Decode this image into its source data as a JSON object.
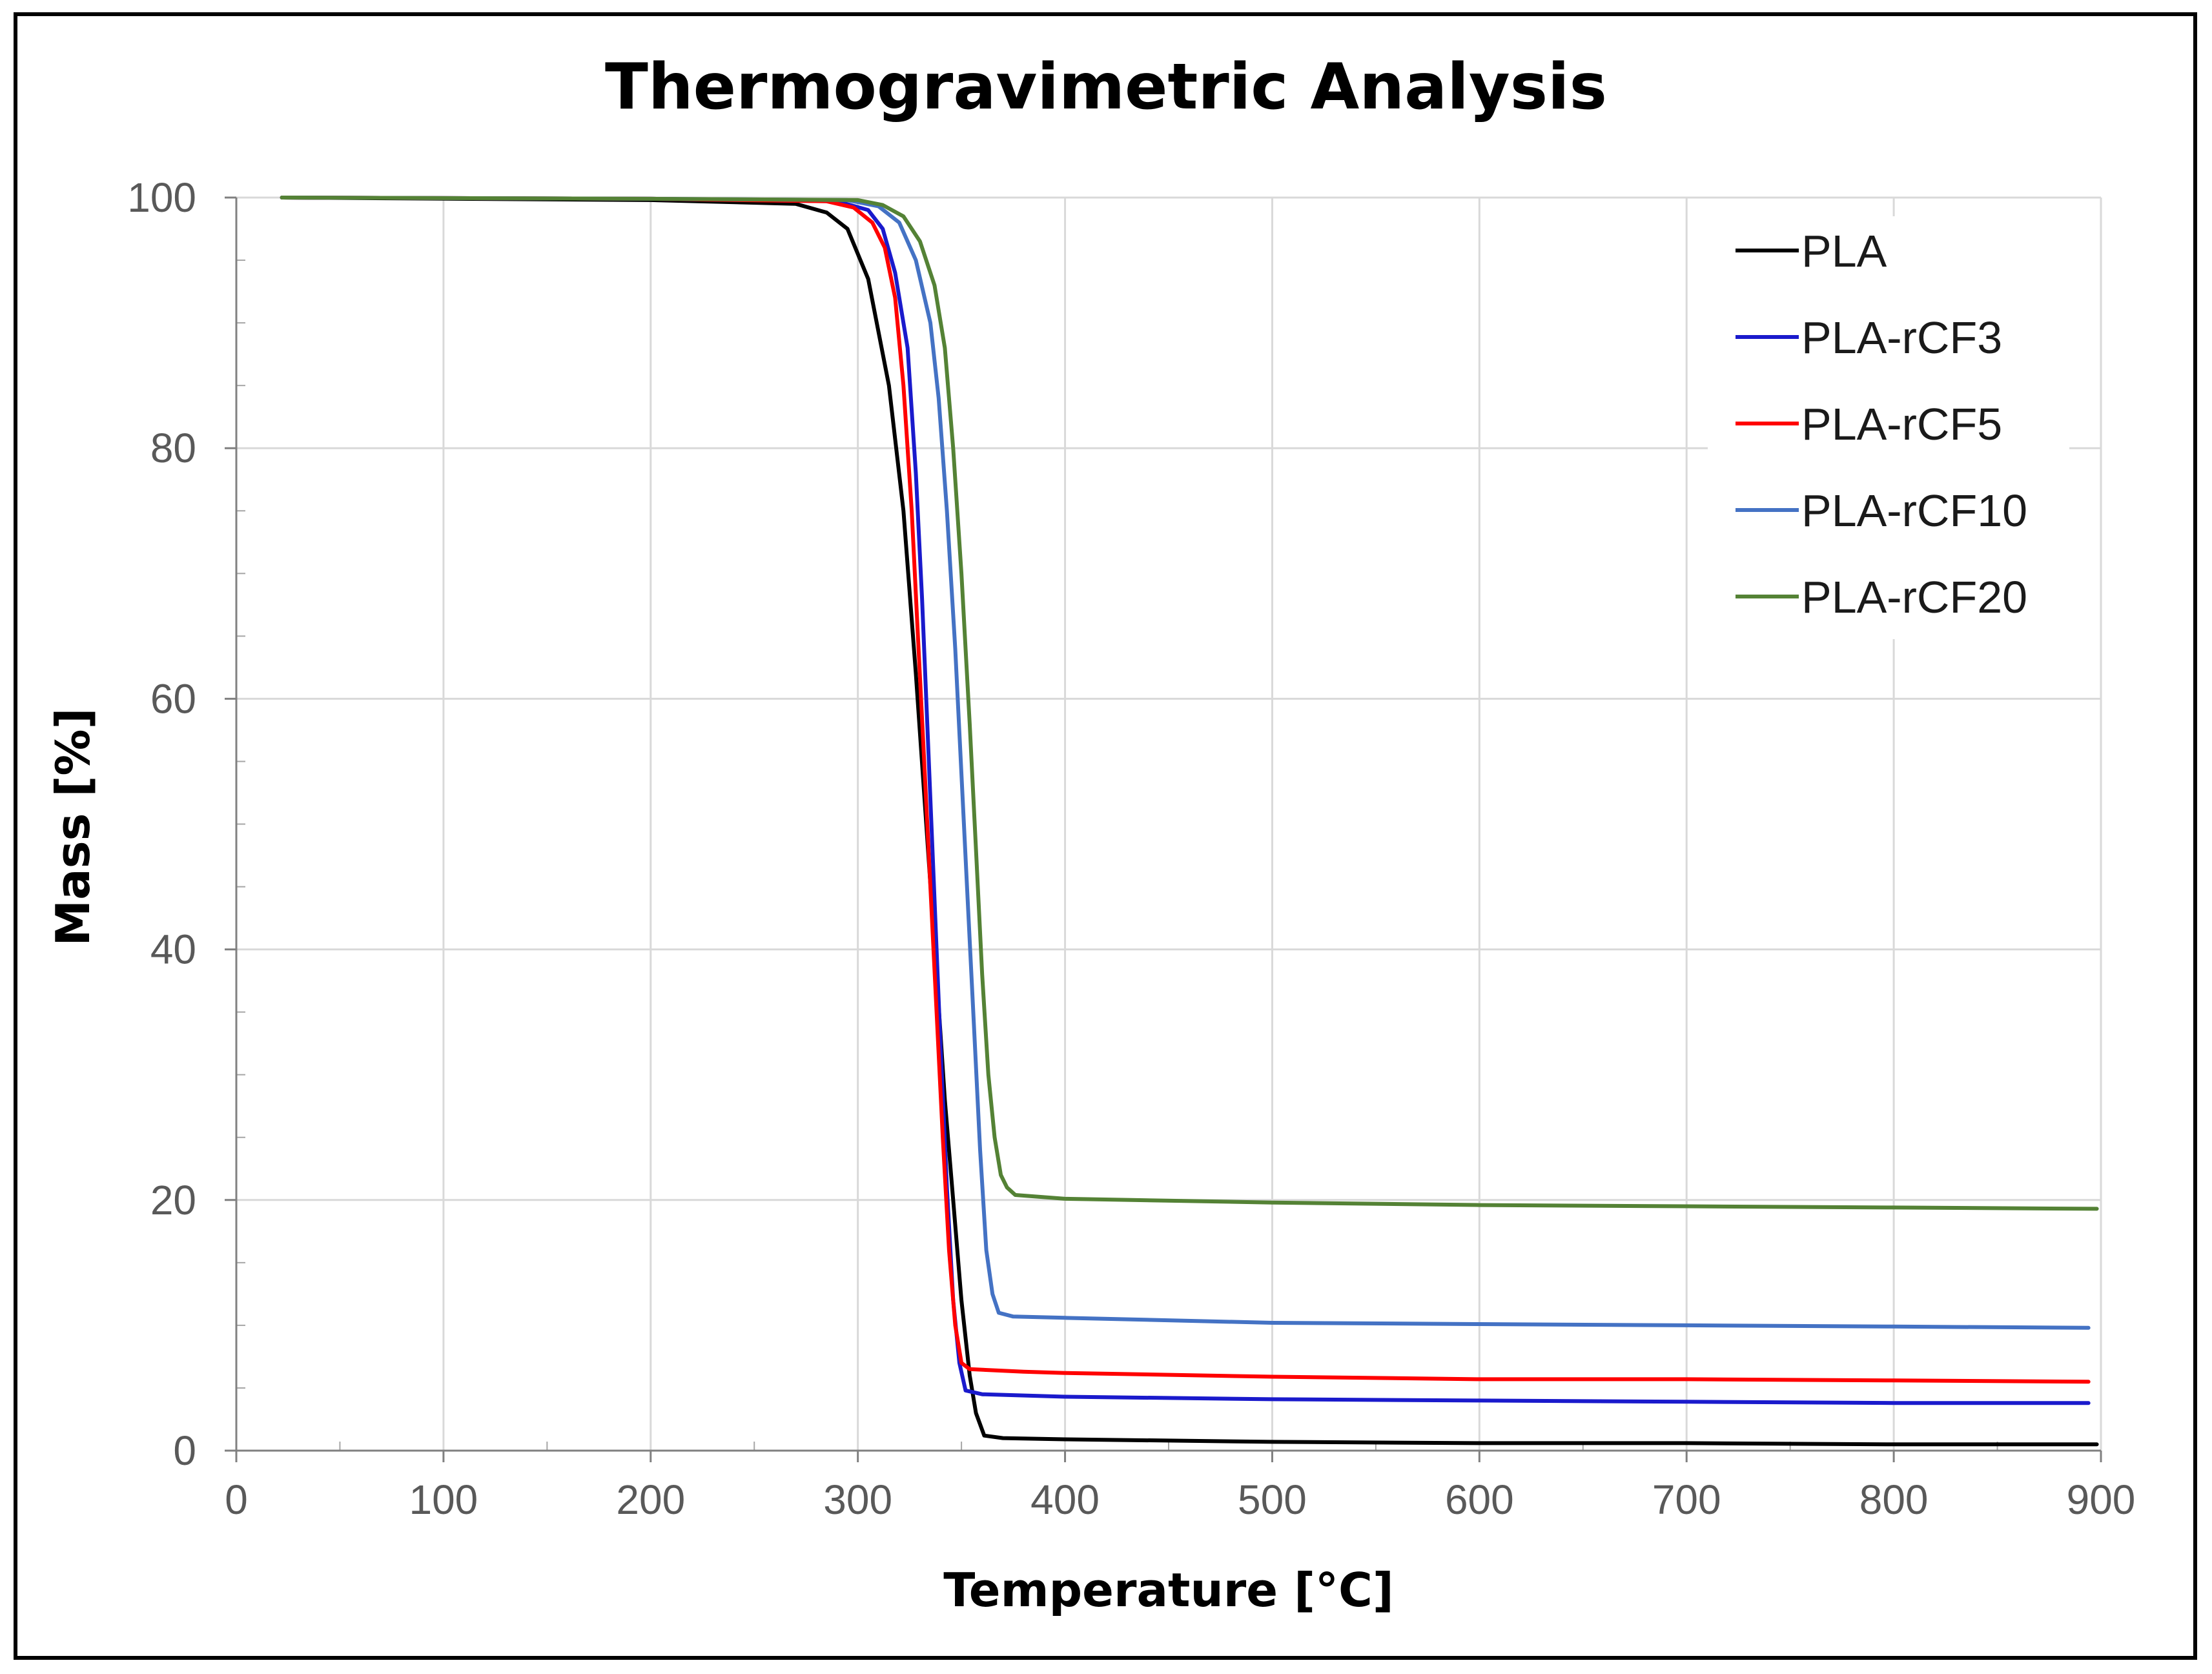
{
  "chart_data": {
    "type": "line",
    "title": "Thermogravimetric Analysis",
    "xlabel": "Temperature [°C]",
    "ylabel": "Mass [%]",
    "xlim": [
      0,
      900
    ],
    "ylim": [
      0,
      100
    ],
    "x_ticks": [
      "0",
      "100",
      "200",
      "300",
      "400",
      "500",
      "600",
      "700",
      "800",
      "900"
    ],
    "y_ticks": [
      "0",
      "20",
      "40",
      "60",
      "80",
      "100"
    ],
    "grid": true,
    "legend_position": "top-right",
    "series": [
      {
        "name": "PLA",
        "color": "#000000",
        "points": [
          [
            22,
            100
          ],
          [
            200,
            99.8
          ],
          [
            270,
            99.5
          ],
          [
            285,
            98.8
          ],
          [
            295,
            97.5
          ],
          [
            305,
            93.5
          ],
          [
            315,
            85
          ],
          [
            322,
            75
          ],
          [
            328,
            62
          ],
          [
            333,
            50
          ],
          [
            338,
            38
          ],
          [
            342,
            28
          ],
          [
            346,
            20
          ],
          [
            350,
            12
          ],
          [
            354,
            6
          ],
          [
            357,
            3
          ],
          [
            361,
            1.2
          ],
          [
            370,
            1
          ],
          [
            400,
            0.9
          ],
          [
            500,
            0.7
          ],
          [
            600,
            0.6
          ],
          [
            700,
            0.6
          ],
          [
            800,
            0.5
          ],
          [
            898,
            0.5
          ]
        ]
      },
      {
        "name": "PLA-rCF3",
        "color": "#1a1acc",
        "points": [
          [
            22,
            100
          ],
          [
            200,
            99.9
          ],
          [
            290,
            99.7
          ],
          [
            305,
            99
          ],
          [
            312,
            97.5
          ],
          [
            318,
            94
          ],
          [
            324,
            88
          ],
          [
            328,
            78
          ],
          [
            331,
            68
          ],
          [
            334,
            56
          ],
          [
            337,
            44
          ],
          [
            340,
            32
          ],
          [
            343,
            21
          ],
          [
            346,
            12
          ],
          [
            349,
            7
          ],
          [
            352,
            4.8
          ],
          [
            360,
            4.5
          ],
          [
            400,
            4.3
          ],
          [
            500,
            4.1
          ],
          [
            600,
            4
          ],
          [
            700,
            3.9
          ],
          [
            800,
            3.8
          ],
          [
            894,
            3.8
          ]
        ]
      },
      {
        "name": "PLA-rCF5",
        "color": "#ff0000",
        "points": [
          [
            22,
            100
          ],
          [
            200,
            99.9
          ],
          [
            285,
            99.7
          ],
          [
            298,
            99.2
          ],
          [
            307,
            98
          ],
          [
            313,
            96
          ],
          [
            318,
            92
          ],
          [
            322,
            85
          ],
          [
            326,
            75
          ],
          [
            329,
            65
          ],
          [
            332,
            55
          ],
          [
            335,
            45
          ],
          [
            338,
            35
          ],
          [
            341,
            25
          ],
          [
            344,
            16
          ],
          [
            347,
            10
          ],
          [
            350,
            7
          ],
          [
            354,
            6.5
          ],
          [
            380,
            6.3
          ],
          [
            400,
            6.2
          ],
          [
            500,
            5.9
          ],
          [
            600,
            5.7
          ],
          [
            700,
            5.7
          ],
          [
            800,
            5.6
          ],
          [
            894,
            5.5
          ]
        ]
      },
      {
        "name": "PLA-rCF10",
        "color": "#4472c4",
        "points": [
          [
            22,
            100
          ],
          [
            200,
            99.9
          ],
          [
            295,
            99.8
          ],
          [
            310,
            99.3
          ],
          [
            320,
            98
          ],
          [
            328,
            95
          ],
          [
            335,
            90
          ],
          [
            339,
            84
          ],
          [
            343,
            75
          ],
          [
            347,
            64
          ],
          [
            350,
            54
          ],
          [
            353,
            44
          ],
          [
            356,
            34
          ],
          [
            359,
            24
          ],
          [
            362,
            16
          ],
          [
            365,
            12.5
          ],
          [
            368,
            11
          ],
          [
            375,
            10.7
          ],
          [
            400,
            10.6
          ],
          [
            500,
            10.2
          ],
          [
            600,
            10.1
          ],
          [
            700,
            10
          ],
          [
            800,
            9.9
          ],
          [
            894,
            9.8
          ]
        ]
      },
      {
        "name": "PLA-rCF20",
        "color": "#548235",
        "points": [
          [
            22,
            100
          ],
          [
            200,
            99.9
          ],
          [
            300,
            99.8
          ],
          [
            312,
            99.4
          ],
          [
            322,
            98.5
          ],
          [
            330,
            96.5
          ],
          [
            337,
            93
          ],
          [
            342,
            88
          ],
          [
            346,
            80
          ],
          [
            350,
            70
          ],
          [
            354,
            58
          ],
          [
            357,
            48
          ],
          [
            360,
            38
          ],
          [
            363,
            30
          ],
          [
            366,
            25
          ],
          [
            369,
            22
          ],
          [
            372,
            21
          ],
          [
            376,
            20.4
          ],
          [
            400,
            20.1
          ],
          [
            500,
            19.8
          ],
          [
            600,
            19.6
          ],
          [
            700,
            19.5
          ],
          [
            800,
            19.4
          ],
          [
            898,
            19.3
          ]
        ]
      }
    ]
  }
}
